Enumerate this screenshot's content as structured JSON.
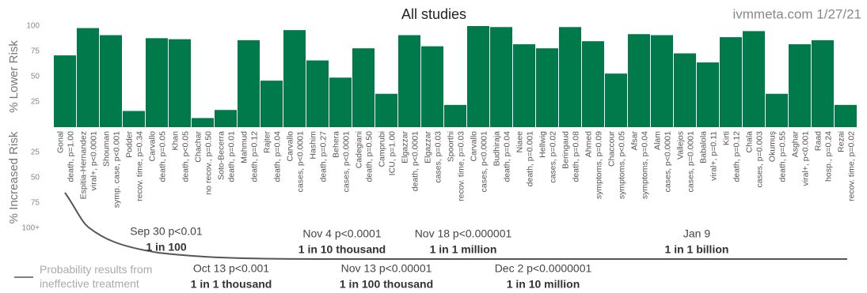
{
  "chart_data": {
    "type": "bar",
    "title": "All studies",
    "watermark": "ivmmeta.com 1/27/21",
    "ylabel_lower": "% Lower Risk",
    "ylabel_increased": "% Increased Risk",
    "categories": [
      "Gonal",
      "Espitia-Hernandez",
      "Shouman",
      "Podder",
      "Carvallo",
      "Khan",
      "Chachar",
      "Soto-Becerra",
      "Mahmud",
      "Rajter",
      "Carvallo",
      "Hashim",
      "Behera",
      "Cadegiani",
      "Camprubi",
      "Elgazzar",
      "Elgazzar",
      "Spoorthi",
      "Carvallo",
      "Budhiraja",
      "Niaee",
      "Hellwig",
      "Beringaud",
      "Ahmed",
      "Chaccour",
      "Afsar",
      "Alam",
      "Vallejos",
      "Babalola",
      "Kirti",
      "Chala",
      "Okumuş",
      "Asghar",
      "Raad",
      "Rezai"
    ],
    "outcomes": [
      "death, p=1.00",
      "viral+, p<0.0001",
      "symp. case, p<0.001",
      "recov. time, p=0.34",
      "death, p=0.05",
      "death, p<0.05",
      "no recov., p=0.50",
      "death, p=0.01",
      "death, p=0.12",
      "death, p=0.04",
      "cases, p<0.0001",
      "death, p=0.27",
      "cases, p<0.0001",
      "death, p=0.50",
      "ICU, p=1.00",
      "death, p<0.0001",
      "cases, p=0.03",
      "recov. time, p=0.03",
      "cases, p<0.0001",
      "death, p=0.04",
      "death, p=0.001",
      "cases, p=0.02",
      "death, p=0.08",
      "symptoms, p=0.09",
      "symptoms, p<0.05",
      "symptoms, p=0.04",
      "cases, p<0.0001",
      "cases, p=0.0001",
      "viral+, p=0.11",
      "death, p=0.12",
      "cases, p=0.003",
      "death, p=0.55",
      "viral+, p<0.001",
      "hosp., p=0.24",
      "recov. time, p=0.02"
    ],
    "values": [
      71,
      98,
      91,
      16,
      88,
      87,
      9,
      17,
      86,
      46,
      96,
      66,
      49,
      78,
      33,
      91,
      80,
      22,
      100,
      99,
      82,
      78,
      99,
      85,
      53,
      92,
      91,
      73,
      64,
      89,
      95,
      33,
      82,
      86,
      22
    ],
    "color": "#007a4b",
    "ylim": [
      0,
      100
    ],
    "yticks": [
      25,
      50,
      75,
      100
    ],
    "increased_ticks": [
      25,
      50,
      75,
      {
        "value": 100,
        "label": "100+"
      }
    ],
    "legend": "Probability results from ineffective treatment",
    "annotations": [
      {
        "date": "Sep 30 p<0.01",
        "odds": "1 in 100"
      },
      {
        "date": "Oct 13 p<0.001",
        "odds": "1 in 1 thousand"
      },
      {
        "date": "Nov 4 p<0.0001",
        "odds": "1 in 10 thousand"
      },
      {
        "date": "Nov 13 p<0.00001",
        "odds": "1 in 100 thousand"
      },
      {
        "date": "Nov 18 p<0.000001",
        "odds": "1 in 1 million"
      },
      {
        "date": "Dec 2 p<0.0000001",
        "odds": "1 in 10 million"
      },
      {
        "date": "Jan 9",
        "odds": "1 in 1 billion"
      }
    ]
  }
}
